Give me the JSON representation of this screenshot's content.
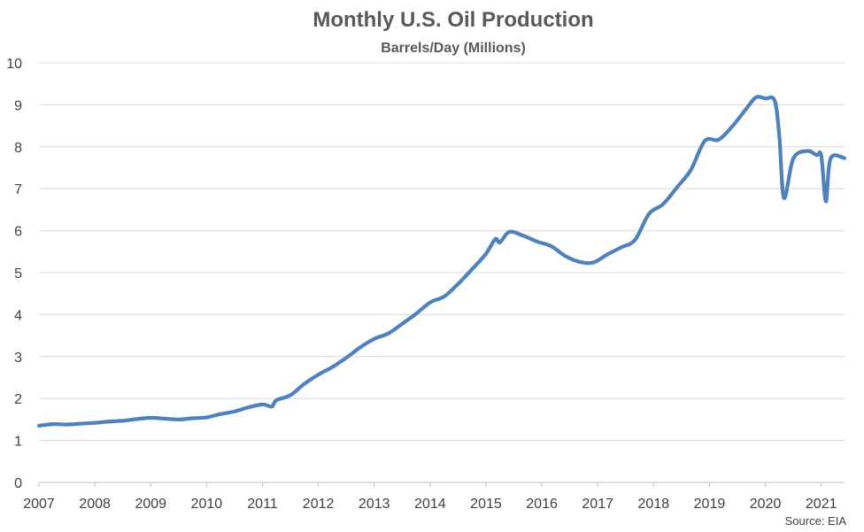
{
  "chart_data": {
    "type": "line",
    "title": "Monthly U.S. Oil Production",
    "subtitle": "Barrels/Day (Millions)",
    "source": "Source: EIA",
    "xlabel": "",
    "ylabel": "",
    "ylim": [
      0,
      10
    ],
    "xlim": [
      "2007-01",
      "2021-06"
    ],
    "y_ticks": [
      "0",
      "1",
      "2",
      "3",
      "4",
      "5",
      "6",
      "7",
      "8",
      "9",
      "10"
    ],
    "x_ticks": [
      "2007",
      "2008",
      "2009",
      "2010",
      "2011",
      "2012",
      "2013",
      "2014",
      "2015",
      "2016",
      "2017",
      "2018",
      "2019",
      "2020",
      "2021"
    ],
    "grid": true,
    "legend": "none",
    "line_color": "#4f81bd",
    "series": [
      {
        "points": [
          [
            "2007-01",
            1.35
          ],
          [
            "2007-04",
            1.39
          ],
          [
            "2007-07",
            1.38
          ],
          [
            "2007-10",
            1.4
          ],
          [
            "2008-01",
            1.42
          ],
          [
            "2008-04",
            1.45
          ],
          [
            "2008-07",
            1.47
          ],
          [
            "2008-10",
            1.51
          ],
          [
            "2009-01",
            1.54
          ],
          [
            "2009-04",
            1.52
          ],
          [
            "2009-07",
            1.5
          ],
          [
            "2009-10",
            1.53
          ],
          [
            "2010-01",
            1.55
          ],
          [
            "2010-04",
            1.63
          ],
          [
            "2010-07",
            1.69
          ],
          [
            "2010-10",
            1.79
          ],
          [
            "2011-01",
            1.86
          ],
          [
            "2011-03",
            1.81
          ],
          [
            "2011-04",
            1.96
          ],
          [
            "2011-07",
            2.08
          ],
          [
            "2011-10",
            2.35
          ],
          [
            "2012-01",
            2.57
          ],
          [
            "2012-04",
            2.75
          ],
          [
            "2012-07",
            2.97
          ],
          [
            "2012-10",
            3.22
          ],
          [
            "2013-01",
            3.42
          ],
          [
            "2013-04",
            3.55
          ],
          [
            "2013-07",
            3.78
          ],
          [
            "2013-10",
            4.02
          ],
          [
            "2014-01",
            4.29
          ],
          [
            "2014-04",
            4.43
          ],
          [
            "2014-07",
            4.73
          ],
          [
            "2014-10",
            5.08
          ],
          [
            "2015-01",
            5.45
          ],
          [
            "2015-03",
            5.8
          ],
          [
            "2015-04",
            5.72
          ],
          [
            "2015-06",
            5.97
          ],
          [
            "2015-09",
            5.88
          ],
          [
            "2015-12",
            5.74
          ],
          [
            "2016-03",
            5.63
          ],
          [
            "2016-06",
            5.4
          ],
          [
            "2016-09",
            5.26
          ],
          [
            "2016-12",
            5.24
          ],
          [
            "2017-03",
            5.43
          ],
          [
            "2017-06",
            5.6
          ],
          [
            "2017-09",
            5.78
          ],
          [
            "2017-12",
            6.4
          ],
          [
            "2018-03",
            6.63
          ],
          [
            "2018-06",
            7.03
          ],
          [
            "2018-09",
            7.45
          ],
          [
            "2018-12",
            8.14
          ],
          [
            "2019-03",
            8.17
          ],
          [
            "2019-06",
            8.5
          ],
          [
            "2019-09",
            8.92
          ],
          [
            "2019-11",
            9.18
          ],
          [
            "2020-01",
            9.15
          ],
          [
            "2020-03",
            9.1
          ],
          [
            "2020-04",
            8.25
          ],
          [
            "2020-05",
            6.78
          ],
          [
            "2020-07",
            7.72
          ],
          [
            "2020-10",
            7.9
          ],
          [
            "2020-12",
            7.8
          ],
          [
            "2021-01",
            7.79
          ],
          [
            "2021-02",
            6.7
          ],
          [
            "2021-03",
            7.72
          ],
          [
            "2021-06",
            7.73
          ]
        ]
      }
    ]
  }
}
